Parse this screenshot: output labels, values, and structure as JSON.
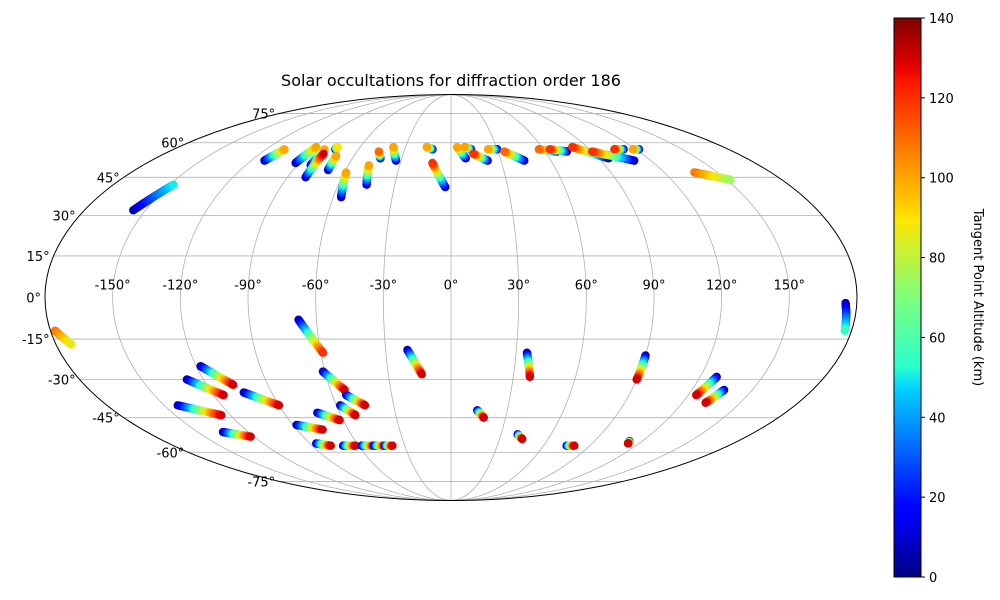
{
  "chart_data": {
    "type": "scatter",
    "projection": "mollweide",
    "title": "Solar occultations for diffraction order 186",
    "grid": true,
    "longitude_ticks": [
      "-150°",
      "-120°",
      "-90°",
      "-60°",
      "-30°",
      "0°",
      "30°",
      "60°",
      "90°",
      "120°",
      "150°"
    ],
    "latitude_ticks": [
      "75°",
      "60°",
      "45°",
      "30°",
      "15°",
      "0°",
      "-15°",
      "-30°",
      "-45°",
      "-60°",
      "-75°"
    ],
    "colorbar": {
      "label": "Tangent Point Altitude (km)",
      "colormap": "jet",
      "range": [
        0,
        140
      ],
      "ticks": [
        "0",
        "20",
        "40",
        "60",
        "80",
        "100",
        "120",
        "140"
      ]
    },
    "series": [
      {
        "lon_start": -156,
        "lat_start": 32,
        "lon_end": -148,
        "lat_end": 42,
        "alt_start": 5,
        "alt_end": 50
      },
      {
        "lon_start": -112,
        "lat_start": 52,
        "lon_end": -108,
        "lat_end": 57,
        "alt_start": 5,
        "alt_end": 100
      },
      {
        "lon_start": -92,
        "lat_start": 51,
        "lon_end": -89,
        "lat_end": 58,
        "alt_start": 5,
        "alt_end": 100
      },
      {
        "lon_start": -82,
        "lat_start": 50,
        "lon_end": -82,
        "lat_end": 57,
        "alt_start": 5,
        "alt_end": 100
      },
      {
        "lon_start": -80,
        "lat_start": 45,
        "lon_end": -80,
        "lat_end": 55,
        "alt_start": 5,
        "alt_end": 130
      },
      {
        "lon_start": -75,
        "lat_start": 57,
        "lon_end": -75,
        "lat_end": 58,
        "alt_start": 5,
        "alt_end": 90
      },
      {
        "lon_start": -70,
        "lat_start": 48,
        "lon_end": -71,
        "lat_end": 54,
        "alt_start": 5,
        "alt_end": 100
      },
      {
        "lon_start": -56,
        "lat_start": 37,
        "lon_end": -59,
        "lat_end": 47,
        "alt_start": 5,
        "alt_end": 100
      },
      {
        "lon_start": -45,
        "lat_start": 42,
        "lon_end": -48,
        "lat_end": 50,
        "alt_start": 5,
        "alt_end": 100
      },
      {
        "lon_start": -43,
        "lat_start": 53,
        "lon_end": -46,
        "lat_end": 56,
        "alt_start": 5,
        "alt_end": 110
      },
      {
        "lon_start": -33,
        "lat_start": 52,
        "lon_end": -38,
        "lat_end": 58,
        "alt_start": 5,
        "alt_end": 100
      },
      {
        "lon_start": -12,
        "lat_start": 57,
        "lon_end": -16,
        "lat_end": 58,
        "alt_start": 5,
        "alt_end": 100
      },
      {
        "lon_start": -3,
        "lat_start": 41,
        "lon_end": -11,
        "lat_end": 51,
        "alt_start": 5,
        "alt_end": 120
      },
      {
        "lon_start": 9,
        "lat_start": 53,
        "lon_end": 4,
        "lat_end": 58,
        "alt_start": 5,
        "alt_end": 100
      },
      {
        "lon_start": 13,
        "lat_start": 57,
        "lon_end": 9,
        "lat_end": 58,
        "alt_start": 5,
        "alt_end": 100
      },
      {
        "lon_start": 22,
        "lat_start": 52,
        "lon_end": 14,
        "lat_end": 55,
        "alt_start": 5,
        "alt_end": 120
      },
      {
        "lon_start": 30,
        "lat_start": 57,
        "lon_end": 24,
        "lat_end": 57,
        "alt_start": 5,
        "alt_end": 100
      },
      {
        "lon_start": 44,
        "lat_start": 52,
        "lon_end": 34,
        "lat_end": 56,
        "alt_start": 5,
        "alt_end": 110
      },
      {
        "lon_start": 68,
        "lat_start": 56,
        "lon_end": 57,
        "lat_end": 57,
        "alt_start": 5,
        "alt_end": 110
      },
      {
        "lon_start": 74,
        "lat_start": 56,
        "lon_end": 64,
        "lat_end": 57,
        "alt_start": 5,
        "alt_end": 120
      },
      {
        "lon_start": 96,
        "lat_start": 53,
        "lon_end": 80,
        "lat_end": 58,
        "alt_start": 5,
        "alt_end": 120
      },
      {
        "lon_start": 110,
        "lat_start": 52,
        "lon_end": 90,
        "lat_end": 56,
        "alt_start": 5,
        "alt_end": 120
      },
      {
        "lon_start": 112,
        "lat_start": 57,
        "lon_end": 106,
        "lat_end": 57,
        "alt_start": 5,
        "alt_end": 120
      },
      {
        "lon_start": 122,
        "lat_start": 57,
        "lon_end": 118,
        "lat_end": 57,
        "alt_start": 5,
        "alt_end": 100
      },
      {
        "lon_start": 137,
        "lat_start": 47,
        "lon_end": 152,
        "lat_end": 44,
        "alt_start": 110,
        "alt_end": 75
      },
      {
        "lon_start": 175,
        "lat_start": -2,
        "lon_end": 177,
        "lat_end": -12,
        "alt_start": 5,
        "alt_end": 55
      },
      {
        "lon_start": -178,
        "lat_start": -12,
        "lon_end": -173,
        "lat_end": -17,
        "alt_start": 110,
        "alt_end": 85
      },
      {
        "lon_start": -68,
        "lat_start": -8,
        "lon_end": -59,
        "lat_end": -20,
        "alt_start": 5,
        "alt_end": 120
      },
      {
        "lon_start": -20,
        "lat_start": -19,
        "lon_end": -14,
        "lat_end": -28,
        "alt_start": 5,
        "alt_end": 130
      },
      {
        "lon_start": 35,
        "lat_start": -20,
        "lon_end": 38,
        "lat_end": -29,
        "alt_start": 5,
        "alt_end": 130
      },
      {
        "lon_start": 90,
        "lat_start": -21,
        "lon_end": 90,
        "lat_end": -30,
        "alt_start": 5,
        "alt_end": 130
      },
      {
        "lon_start": -118,
        "lat_start": -25,
        "lon_end": -107,
        "lat_end": -32,
        "alt_start": 5,
        "alt_end": 130
      },
      {
        "lon_start": -128,
        "lat_start": -30,
        "lon_end": -115,
        "lat_end": -36,
        "alt_start": 5,
        "alt_end": 130
      },
      {
        "lon_start": -104,
        "lat_start": -35,
        "lon_end": -90,
        "lat_end": -40,
        "alt_start": 5,
        "alt_end": 130
      },
      {
        "lon_start": -143,
        "lat_start": -40,
        "lon_end": -125,
        "lat_end": -44,
        "alt_start": 5,
        "alt_end": 130
      },
      {
        "lon_start": -61,
        "lat_start": -27,
        "lon_end": -53,
        "lat_end": -34,
        "alt_start": 5,
        "alt_end": 130
      },
      {
        "lon_start": -53,
        "lat_start": -36,
        "lon_end": -45,
        "lat_end": -40,
        "alt_start": 5,
        "alt_end": 130
      },
      {
        "lon_start": -58,
        "lat_start": -40,
        "lon_end": -52,
        "lat_end": -44,
        "alt_start": 5,
        "alt_end": 130
      },
      {
        "lon_start": -72,
        "lat_start": -43,
        "lon_end": -62,
        "lat_end": -46,
        "alt_start": 5,
        "alt_end": 130
      },
      {
        "lon_start": -88,
        "lat_start": -48,
        "lon_end": -75,
        "lat_end": -50,
        "alt_start": 5,
        "alt_end": 130
      },
      {
        "lon_start": -135,
        "lat_start": -51,
        "lon_end": -122,
        "lat_end": -53,
        "alt_start": 5,
        "alt_end": 130
      },
      {
        "lon_start": -86,
        "lat_start": -56,
        "lon_end": -78,
        "lat_end": -57,
        "alt_start": 5,
        "alt_end": 130
      },
      {
        "lon_start": -70,
        "lat_start": -57,
        "lon_end": -62,
        "lat_end": -57,
        "alt_start": 5,
        "alt_end": 130
      },
      {
        "lon_start": -58,
        "lat_start": -57,
        "lon_end": -50,
        "lat_end": -57,
        "alt_start": 5,
        "alt_end": 130
      },
      {
        "lon_start": -50,
        "lat_start": -57,
        "lon_end": -43,
        "lat_end": -57,
        "alt_start": 5,
        "alt_end": 130
      },
      {
        "lon_start": -43,
        "lat_start": -57,
        "lon_end": -38,
        "lat_end": -57,
        "alt_start": 5,
        "alt_end": 130
      },
      {
        "lon_start": 14,
        "lat_start": -42,
        "lon_end": 18,
        "lat_end": -45,
        "alt_start": 5,
        "alt_end": 130
      },
      {
        "lon_start": 40,
        "lat_start": -52,
        "lon_end": 44,
        "lat_end": -54,
        "alt_start": 5,
        "alt_end": 130
      },
      {
        "lon_start": 75,
        "lat_start": -57,
        "lon_end": 80,
        "lat_end": -57,
        "alt_start": 5,
        "alt_end": 130
      },
      {
        "lon_start": 112,
        "lat_start": -55,
        "lon_end": 113,
        "lat_end": -56,
        "alt_start": 5,
        "alt_end": 130
      },
      {
        "lon_start": 128,
        "lat_start": -29,
        "lon_end": 124,
        "lat_end": -36,
        "alt_start": 5,
        "alt_end": 130
      },
      {
        "lon_start": 136,
        "lat_start": -34,
        "lon_end": 132,
        "lat_end": -39,
        "alt_start": 5,
        "alt_end": 130
      }
    ]
  }
}
